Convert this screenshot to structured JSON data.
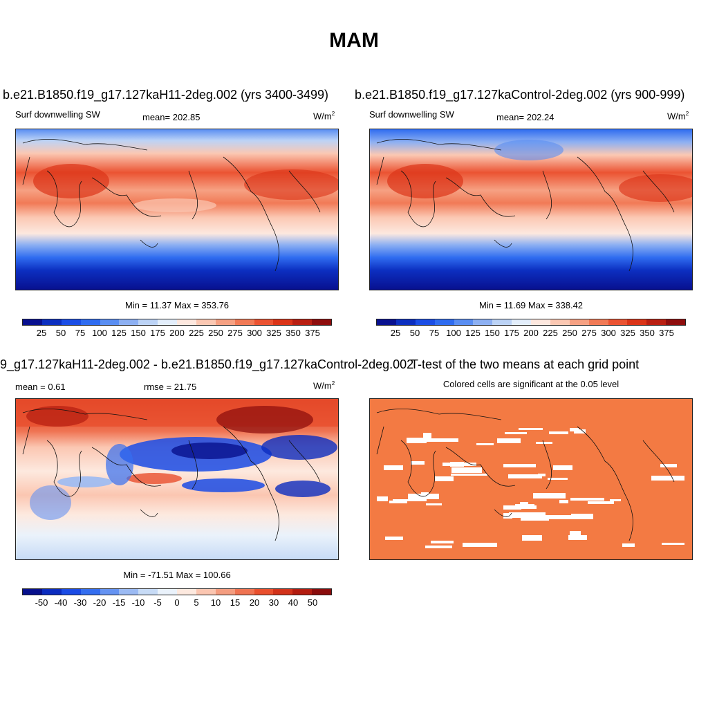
{
  "title": "MAM",
  "colors": {
    "sw_palette": [
      "#08108f",
      "#0c2fc0",
      "#1b4ee6",
      "#2f6cf0",
      "#5a8ef2",
      "#8db0f2",
      "#bcd3f6",
      "#e3eefb",
      "#fde8df",
      "#fbc8b3",
      "#f6a183",
      "#f17a56",
      "#eb5332",
      "#db3418",
      "#b91f12",
      "#8e0d0d"
    ],
    "diff_palette": [
      "#07108c",
      "#0b2cbf",
      "#1a4be5",
      "#346ef0",
      "#6593f2",
      "#9bbaf3",
      "#c7dbf6",
      "#eaf2fb",
      "#fde9df",
      "#fbc6b1",
      "#f49d80",
      "#ef7352",
      "#e94f2d",
      "#d2321a",
      "#b31c10",
      "#8a0c0c"
    ],
    "sig_cell": "#f37a43"
  },
  "chart_data": [
    {
      "type": "heatmap",
      "title": "b.e21.B1850.f19_g17.127kaH11-2deg.002 (yrs 3400-3499)",
      "variable": "Surf downwelling SW",
      "mean_label": "mean= 202.85",
      "units_base": "W/m",
      "units_exp": "2",
      "mean": 202.85,
      "min": 11.37,
      "max": 353.76,
      "minmax_label": "Min =  11.37 Max = 353.76",
      "colorbar_levels": [
        "25",
        "50",
        "75",
        "100",
        "125",
        "150",
        "175",
        "200",
        "225",
        "250",
        "275",
        "300",
        "325",
        "350",
        "375"
      ]
    },
    {
      "type": "heatmap",
      "title": "b.e21.B1850.f19_g17.127kaControl-2deg.002 (yrs 900-999)",
      "variable": "Surf downwelling SW",
      "mean_label": "mean= 202.24",
      "units_base": "W/m",
      "units_exp": "2",
      "mean": 202.24,
      "min": 11.69,
      "max": 338.42,
      "minmax_label": "Min =  11.69 Max = 338.42",
      "colorbar_levels": [
        "25",
        "50",
        "75",
        "100",
        "125",
        "150",
        "175",
        "200",
        "225",
        "250",
        "275",
        "300",
        "325",
        "350",
        "375"
      ]
    },
    {
      "type": "heatmap",
      "title": "9_g17.127kaH11-2deg.002 - b.e21.B1850.f19_g17.127kaControl-2deg.002",
      "mean_label": "mean =   0.61",
      "rmse_label": "rmse =  21.75",
      "units_base": "W/m",
      "units_exp": "2",
      "mean": 0.61,
      "rmse": 21.75,
      "min": -71.51,
      "max": 100.66,
      "minmax_label": "Min = -71.51 Max = 100.66",
      "colorbar_levels": [
        "-50",
        "-40",
        "-30",
        "-20",
        "-15",
        "-10",
        "-5",
        "0",
        "5",
        "10",
        "15",
        "20",
        "30",
        "40",
        "50"
      ]
    },
    {
      "type": "heatmap",
      "title": "T-test of the two means at each grid point",
      "subtitle": "Colored cells are significant at the 0.05 level"
    }
  ]
}
